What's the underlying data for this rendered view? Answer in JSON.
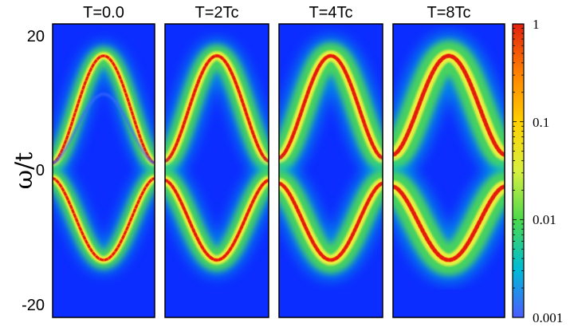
{
  "chart_data": {
    "type": "heatmap",
    "ylabel": "ω/t",
    "ylim": [
      -23,
      23
    ],
    "y_ticks": [
      "20",
      "0",
      "-20"
    ],
    "y_tick_values": [
      20,
      0,
      -20
    ],
    "colorbar": {
      "scale": "log",
      "range": [
        0.001,
        1
      ],
      "tick_labels": [
        "1",
        "0.1",
        "0.01",
        "0.001"
      ],
      "tick_values": [
        1,
        0.1,
        0.01,
        0.001
      ],
      "colors": [
        "#4b5cff",
        "#00bcd4",
        "#4cd94c",
        "#d8f040",
        "#ffd000",
        "#ff8000",
        "#e02010"
      ]
    },
    "background_color": "#0b2dff",
    "panels": [
      {
        "title": "T=0.0",
        "band_top": 18,
        "band_bottom": -14,
        "gap": 1.2,
        "broadening": 0.35,
        "inner_ghost": 12
      },
      {
        "title": "T=2Tc",
        "band_top": 18,
        "band_bottom": -14,
        "gap": 1.5,
        "broadening": 0.55
      },
      {
        "title": "T=4Tc",
        "band_top": 18,
        "band_bottom": -14,
        "gap": 2.0,
        "broadening": 0.75
      },
      {
        "title": "T=8Tc",
        "band_top": 18,
        "band_bottom": -14,
        "gap": 2.5,
        "broadening": 0.95
      }
    ]
  }
}
